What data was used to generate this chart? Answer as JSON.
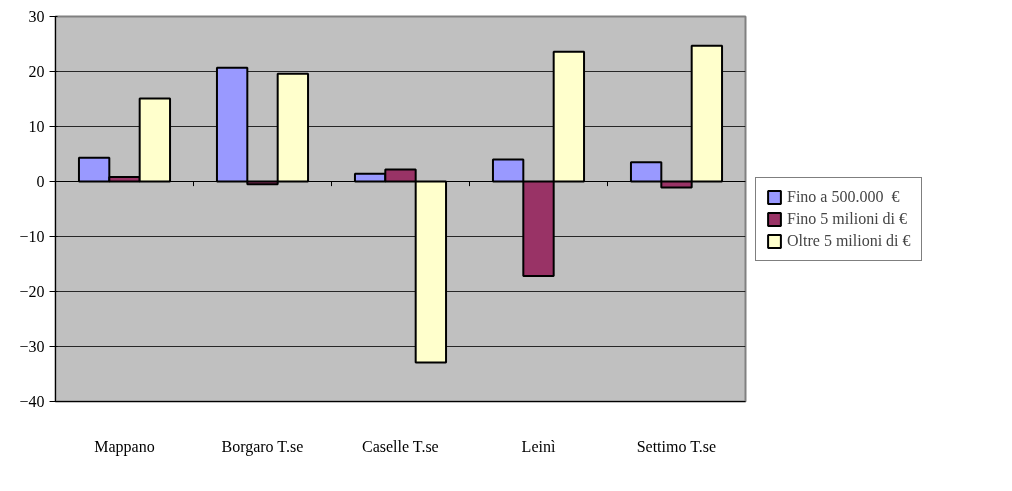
{
  "chart_data": {
    "type": "bar",
    "categories": [
      "Mappano",
      "Borgaro T.se",
      "Caselle T.se",
      "Leinì",
      "Settimo T.se"
    ],
    "series": [
      {
        "name": "Fino a 500.000  €",
        "color": "#9999ff",
        "values": [
          4.3,
          20.7,
          1.4,
          4.0,
          3.5
        ]
      },
      {
        "name": "Fino 5 milioni di €",
        "color": "#993366",
        "values": [
          0.8,
          -0.5,
          2.2,
          -17.2,
          -1.1
        ]
      },
      {
        "name": "Oltre 5 milioni di €",
        "color": "#ffffcc",
        "values": [
          15.1,
          19.6,
          -32.9,
          23.6,
          24.7
        ]
      }
    ],
    "ylim": [
      -40,
      30
    ],
    "yticks": [
      -40,
      -30,
      -20,
      -10,
      0,
      10,
      20,
      30
    ],
    "grid": "y",
    "legend": "right"
  }
}
